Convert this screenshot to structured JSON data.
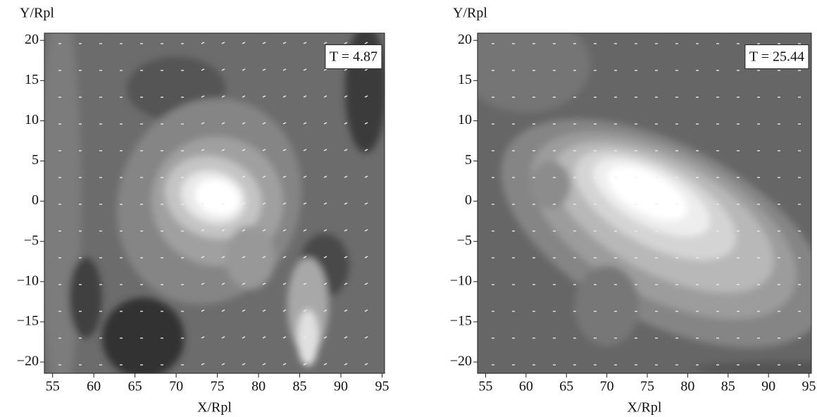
{
  "chart_data": [
    {
      "type": "contour",
      "annotation": "T = 4.87",
      "xlabel": "X/Rpl",
      "ylabel": "Y/Rpl",
      "xlim": [
        54,
        95.3
      ],
      "ylim": [
        -21.4,
        20.9
      ],
      "xticks": [
        55,
        60,
        65,
        70,
        75,
        80,
        85,
        90,
        95
      ],
      "yticks": [
        {
          "value": -20,
          "label": "−20"
        },
        {
          "value": -15,
          "label": "−15"
        },
        {
          "value": -10,
          "label": "−10"
        },
        {
          "value": -5,
          "label": "−5"
        },
        0,
        5,
        10,
        15,
        20
      ]
    },
    {
      "type": "contour",
      "annotation": "T = 25.44",
      "xlabel": "X/Rpl",
      "ylabel": "Y/Rpl",
      "xlim": [
        54,
        95.3
      ],
      "ylim": [
        -21.4,
        20.9
      ],
      "xticks": [
        55,
        60,
        65,
        70,
        75,
        80,
        85,
        90,
        95
      ],
      "yticks": [
        {
          "value": -20,
          "label": "−20"
        },
        {
          "value": -15,
          "label": "−15"
        },
        {
          "value": -10,
          "label": "−10"
        },
        {
          "value": -5,
          "label": "−5"
        },
        0,
        5,
        10,
        15,
        20
      ]
    }
  ]
}
